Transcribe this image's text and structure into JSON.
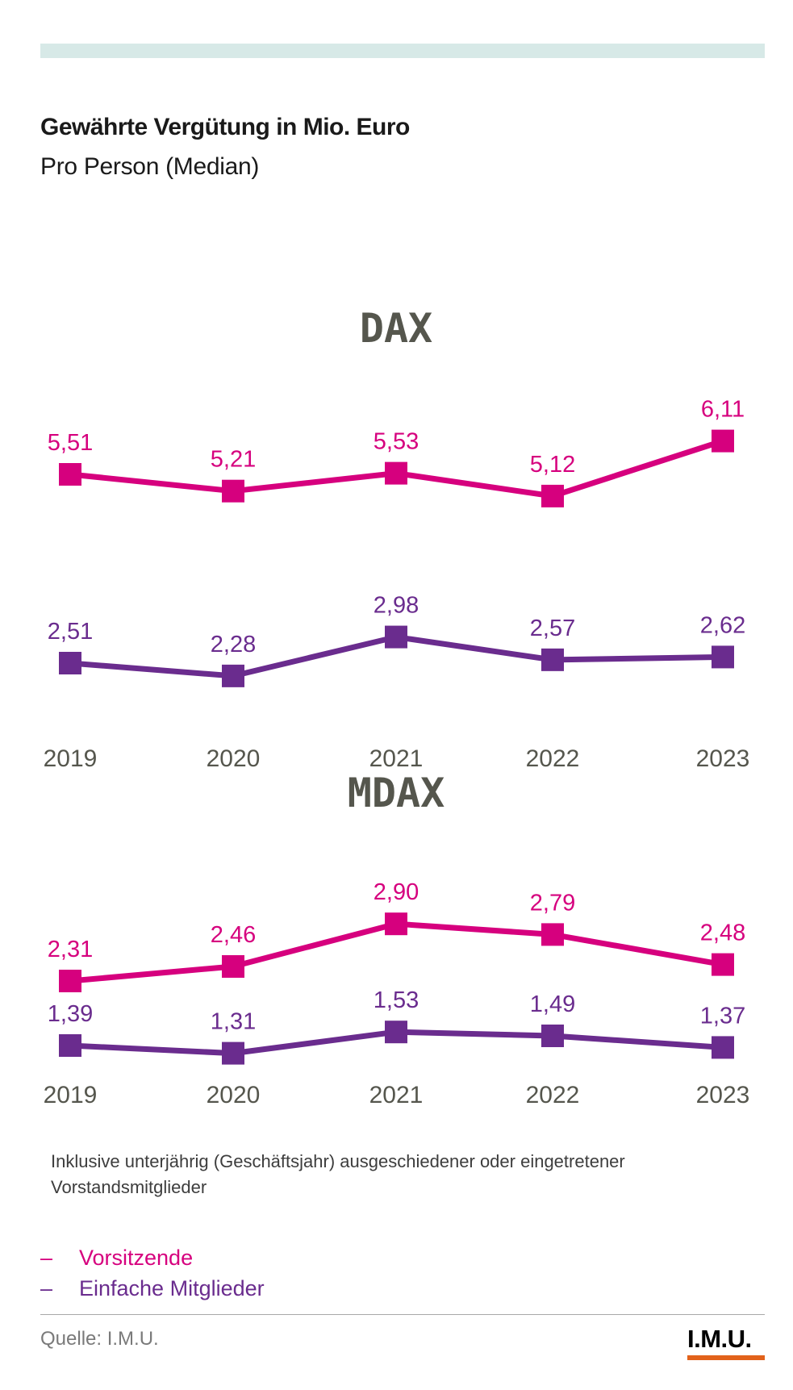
{
  "header": {
    "title": "Gewährte Vergütung in Mio. Euro",
    "subtitle": "Pro Person (Median)"
  },
  "colors": {
    "vorsitzende": "#d6007e",
    "mitglieder": "#6a2c8e",
    "panel_title": "#55564d",
    "year_label": "#55564d",
    "top_bar": "#d7e9e7",
    "logo_accent": "#e2621b"
  },
  "chart_data": [
    {
      "type": "line",
      "title": "DAX",
      "categories": [
        "2019",
        "2020",
        "2021",
        "2022",
        "2023"
      ],
      "series": [
        {
          "name": "Vorsitzende",
          "values": [
            5.51,
            5.21,
            5.53,
            5.12,
            6.11
          ],
          "labels": [
            "5,51",
            "5,21",
            "5,53",
            "5,12",
            "6,11"
          ]
        },
        {
          "name": "Einfache Mitglieder",
          "values": [
            2.51,
            2.28,
            2.98,
            2.57,
            2.62
          ],
          "labels": [
            "2,51",
            "2,28",
            "2,98",
            "2,57",
            "2,62"
          ]
        }
      ],
      "marker": "square",
      "grid": false
    },
    {
      "type": "line",
      "title": "MDAX",
      "categories": [
        "2019",
        "2020",
        "2021",
        "2022",
        "2023"
      ],
      "series": [
        {
          "name": "Vorsitzende",
          "values": [
            2.31,
            2.46,
            2.9,
            2.79,
            2.48
          ],
          "labels": [
            "2,31",
            "2,46",
            "2,90",
            "2,79",
            "2,48"
          ]
        },
        {
          "name": "Einfache Mitglieder",
          "values": [
            1.39,
            1.31,
            1.53,
            1.49,
            1.37
          ],
          "labels": [
            "1,39",
            "1,31",
            "1,53",
            "1,49",
            "1,37"
          ]
        }
      ],
      "marker": "square",
      "grid": false
    }
  ],
  "note": "Inklusive unterjährig (Geschäftsjahr) ausgeschiedener oder eingetretener Vorstandsmitglieder",
  "legend": {
    "marker": "–",
    "items": [
      {
        "label": "Vorsitzende",
        "color": "#d6007e"
      },
      {
        "label": "Einfache Mitglieder",
        "color": "#6a2c8e"
      }
    ]
  },
  "footer": {
    "source": "Quelle: I.M.U.",
    "logo_text": "I.M.U."
  }
}
